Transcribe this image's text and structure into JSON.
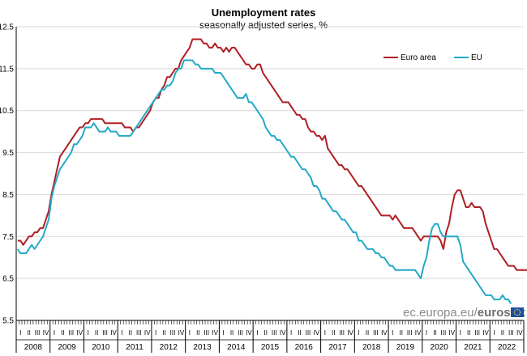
{
  "chart_data": {
    "type": "line",
    "title": "Unemployment rates",
    "subtitle": "seasonally adjusted series, %",
    "ylim": [
      5.5,
      12.5
    ],
    "yticks": [
      "12.5",
      "11.5",
      "10.5",
      "9.5",
      "8.5",
      "7.5",
      "6.5",
      "5.5"
    ],
    "grid": "horizontal",
    "legend_position": "top-right",
    "x_start": "2008-01",
    "quarter_labels": [
      "I",
      "II",
      "III",
      "IV"
    ],
    "years": [
      "2008",
      "2009",
      "2010",
      "2011",
      "2012",
      "2013",
      "2014",
      "2015",
      "2016",
      "2017",
      "2018",
      "2019",
      "2020",
      "2021",
      "2022"
    ],
    "brand": {
      "light": "ec.europa.eu/",
      "bold": "eurostat"
    },
    "series": [
      {
        "name": "Euro area",
        "color": "#b01e23",
        "values": [
          7.4,
          7.4,
          7.3,
          7.4,
          7.5,
          7.5,
          7.6,
          7.6,
          7.7,
          7.7,
          7.9,
          8.1,
          8.5,
          8.8,
          9.1,
          9.4,
          9.5,
          9.6,
          9.7,
          9.8,
          9.9,
          10.0,
          10.1,
          10.1,
          10.2,
          10.2,
          10.3,
          10.3,
          10.3,
          10.3,
          10.3,
          10.2,
          10.2,
          10.2,
          10.2,
          10.2,
          10.2,
          10.2,
          10.1,
          10.1,
          10.1,
          10.0,
          10.1,
          10.1,
          10.2,
          10.3,
          10.4,
          10.5,
          10.7,
          10.8,
          10.8,
          11.0,
          11.1,
          11.3,
          11.3,
          11.4,
          11.5,
          11.5,
          11.7,
          11.8,
          11.9,
          12.0,
          12.2,
          12.2,
          12.2,
          12.2,
          12.1,
          12.1,
          12.0,
          12.0,
          12.1,
          12.0,
          12.0,
          11.9,
          12.0,
          11.9,
          12.0,
          12.0,
          11.9,
          11.8,
          11.7,
          11.6,
          11.6,
          11.5,
          11.5,
          11.6,
          11.6,
          11.4,
          11.3,
          11.2,
          11.1,
          11.0,
          10.9,
          10.8,
          10.7,
          10.7,
          10.7,
          10.6,
          10.5,
          10.4,
          10.4,
          10.3,
          10.3,
          10.1,
          10.0,
          10.0,
          9.9,
          9.9,
          9.8,
          9.9,
          9.6,
          9.5,
          9.4,
          9.3,
          9.2,
          9.2,
          9.1,
          9.1,
          9.0,
          8.9,
          8.8,
          8.7,
          8.7,
          8.6,
          8.5,
          8.4,
          8.3,
          8.2,
          8.1,
          8.0,
          8.0,
          8.0,
          8.0,
          7.9,
          8.0,
          7.9,
          7.8,
          7.7,
          7.7,
          7.7,
          7.7,
          7.6,
          7.5,
          7.4,
          7.5,
          7.5,
          7.5,
          7.5,
          7.5,
          7.5,
          7.4,
          7.2,
          7.6,
          7.8,
          8.2,
          8.5,
          8.6,
          8.6,
          8.4,
          8.2,
          8.2,
          8.3,
          8.2,
          8.2,
          8.2,
          8.1,
          7.8,
          7.6,
          7.4,
          7.2,
          7.2,
          7.1,
          7.0,
          6.9,
          6.8,
          6.8,
          6.8,
          6.7,
          6.7,
          6.7,
          6.7,
          6.7,
          6.7,
          6.7,
          6.6
        ]
      },
      {
        "name": "EU",
        "color": "#23a9c7",
        "values": [
          7.2,
          7.1,
          7.1,
          7.1,
          7.2,
          7.3,
          7.2,
          7.3,
          7.4,
          7.5,
          7.7,
          7.9,
          8.4,
          8.7,
          8.9,
          9.1,
          9.2,
          9.3,
          9.4,
          9.5,
          9.7,
          9.7,
          9.8,
          9.9,
          10.1,
          10.1,
          10.1,
          10.2,
          10.1,
          10.0,
          10.0,
          10.0,
          10.1,
          10.0,
          10.0,
          10.0,
          9.9,
          9.9,
          9.9,
          9.9,
          9.9,
          10.0,
          10.1,
          10.2,
          10.3,
          10.4,
          10.5,
          10.6,
          10.7,
          10.8,
          10.9,
          11.0,
          11.0,
          11.1,
          11.1,
          11.2,
          11.4,
          11.5,
          11.5,
          11.7,
          11.7,
          11.7,
          11.7,
          11.6,
          11.6,
          11.5,
          11.5,
          11.5,
          11.5,
          11.5,
          11.4,
          11.4,
          11.4,
          11.3,
          11.2,
          11.1,
          11.0,
          10.9,
          10.8,
          10.8,
          10.8,
          10.9,
          10.7,
          10.7,
          10.6,
          10.5,
          10.4,
          10.3,
          10.1,
          10.0,
          9.9,
          9.9,
          9.8,
          9.8,
          9.7,
          9.6,
          9.5,
          9.4,
          9.4,
          9.3,
          9.2,
          9.1,
          9.1,
          9.0,
          8.9,
          8.7,
          8.7,
          8.6,
          8.4,
          8.4,
          8.3,
          8.2,
          8.1,
          8.1,
          8.0,
          7.9,
          7.9,
          7.8,
          7.7,
          7.6,
          7.6,
          7.4,
          7.4,
          7.3,
          7.2,
          7.2,
          7.2,
          7.1,
          7.1,
          7.0,
          7.0,
          6.9,
          6.8,
          6.8,
          6.7,
          6.7,
          6.7,
          6.7,
          6.7,
          6.7,
          6.7,
          6.7,
          6.6,
          6.5,
          6.8,
          7.0,
          7.4,
          7.7,
          7.8,
          7.8,
          7.6,
          7.5,
          7.5,
          7.5,
          7.5,
          7.5,
          7.5,
          7.3,
          6.9,
          6.8,
          6.7,
          6.6,
          6.5,
          6.4,
          6.3,
          6.2,
          6.1,
          6.1,
          6.1,
          6.0,
          6.0,
          6.0,
          6.1,
          6.0,
          6.0,
          5.9
        ]
      }
    ]
  }
}
